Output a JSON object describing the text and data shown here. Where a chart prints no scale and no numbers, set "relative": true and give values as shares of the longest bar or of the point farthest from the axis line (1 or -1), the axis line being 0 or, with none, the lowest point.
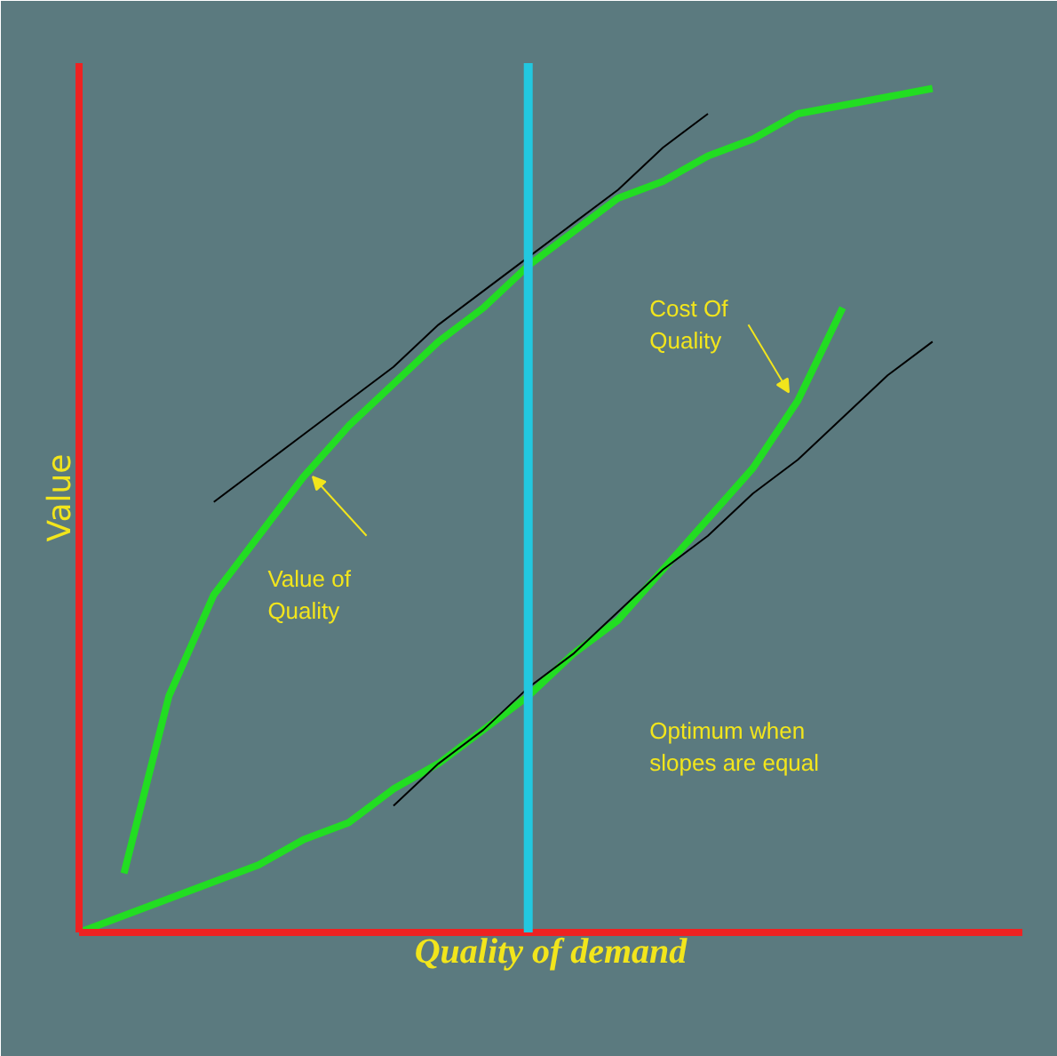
{
  "chart_data": {
    "type": "line",
    "relative": true,
    "xlabel": "Quality of demand",
    "ylabel": "Value",
    "categories": [
      null,
      null,
      null,
      null,
      null,
      null,
      null,
      null,
      null,
      null,
      null,
      null,
      null,
      null,
      null,
      null,
      null,
      null,
      null,
      null,
      null,
      null
    ],
    "series": [
      {
        "color": "#22dd22",
        "values": [
          null,
          0.07,
          0.28,
          0.4,
          0.47,
          0.54,
          0.6,
          0.65,
          0.7,
          0.74,
          0.79,
          0.83,
          0.87,
          0.89,
          0.92,
          0.94,
          0.97,
          0.98,
          0.99,
          1.0,
          null,
          null
        ]
      },
      {
        "color": "#22dd22",
        "values": [
          0.0,
          0.02,
          0.04,
          0.06,
          0.08,
          0.11,
          0.13,
          0.17,
          0.2,
          0.24,
          0.28,
          0.33,
          0.37,
          0.43,
          0.49,
          0.55,
          0.63,
          0.74,
          null,
          null,
          null,
          null
        ]
      },
      {
        "color": "#000000",
        "values": [
          null,
          null,
          null,
          0.51,
          0.55,
          0.59,
          0.63,
          0.67,
          0.72,
          0.76,
          0.8,
          0.84,
          0.88,
          0.93,
          0.97,
          null,
          null,
          null,
          null,
          null,
          null,
          null
        ]
      },
      {
        "color": "#000000",
        "values": [
          null,
          null,
          null,
          null,
          null,
          null,
          null,
          0.15,
          0.2,
          0.24,
          0.29,
          0.33,
          0.38,
          0.43,
          0.47,
          0.52,
          0.56,
          0.61,
          0.66,
          0.7,
          null,
          null
        ]
      }
    ],
    "annotations": [
      "Value of\nQuality",
      "Cost Of\nQuality",
      "Optimum when\nslopes are equal"
    ]
  }
}
